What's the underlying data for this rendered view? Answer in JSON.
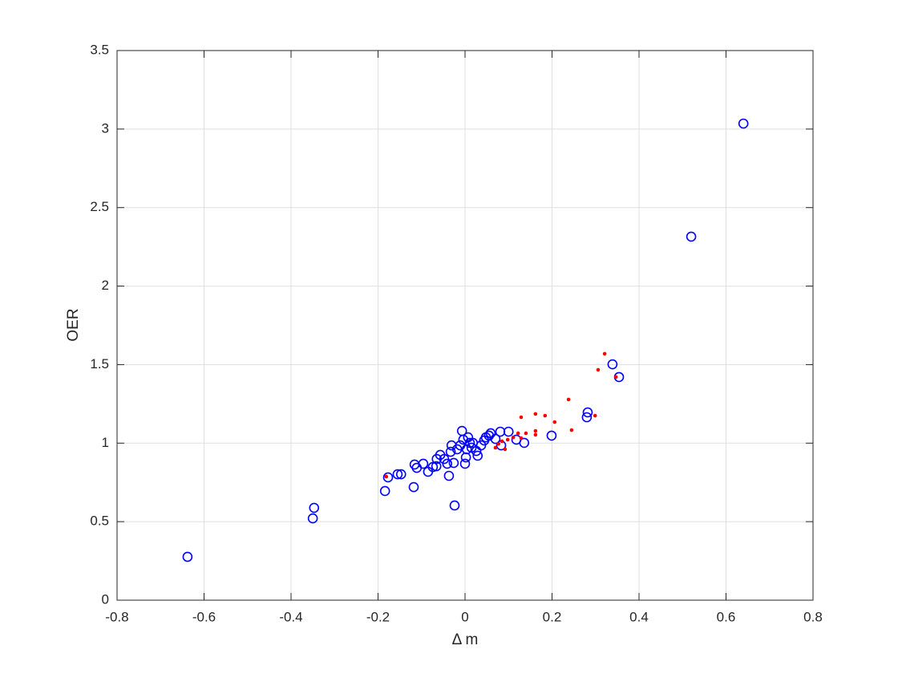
{
  "chart_data": {
    "type": "scatter",
    "xlabel": "Δ m",
    "ylabel": "OER",
    "xlim": [
      -0.8,
      0.8
    ],
    "xticks": [
      -0.8,
      -0.6,
      -0.4,
      -0.2,
      0,
      0.2,
      0.4,
      0.6,
      0.8
    ],
    "ylim": [
      0,
      3.5
    ],
    "yticks": [
      0,
      0.5,
      1,
      1.5,
      2,
      2.5,
      3,
      3.5
    ],
    "grid": true,
    "series": [
      {
        "color": "#0000ff",
        "marker": "circle",
        "x": [
          -0.638,
          -0.347,
          -0.35,
          -0.184,
          -0.177,
          -0.155,
          -0.147,
          -0.118,
          -0.116,
          -0.111,
          -0.096,
          -0.085,
          -0.074,
          -0.066,
          -0.065,
          -0.057,
          -0.048,
          -0.037,
          -0.041,
          -0.033,
          -0.026,
          -0.024,
          -0.031,
          -0.018,
          -0.007,
          -0.011,
          -0.004,
          0,
          0.002,
          0.004,
          0.007,
          0.011,
          0.015,
          0.018,
          0.026,
          0.029,
          0.037,
          0.044,
          0.048,
          0.055,
          0.059,
          0.07,
          0.081,
          0.083,
          0.1,
          0.118,
          0.136,
          0.199,
          0.282,
          0.28,
          0.339,
          0.354,
          0.52,
          0.64
        ],
        "values": [
          0.276,
          0.588,
          0.521,
          0.695,
          0.782,
          0.802,
          0.802,
          0.72,
          0.864,
          0.843,
          0.869,
          0.818,
          0.848,
          0.853,
          0.899,
          0.925,
          0.899,
          0.792,
          0.869,
          0.945,
          0.874,
          0.603,
          0.986,
          0.961,
          1.078,
          0.986,
          1.022,
          0.869,
          0.909,
          0.961,
          1.037,
          1.002,
          0.971,
          1.002,
          0.95,
          0.92,
          0.986,
          1.017,
          1.037,
          1.048,
          1.063,
          1.027,
          1.073,
          0.986,
          1.073,
          1.022,
          1.002,
          1.048,
          1.196,
          1.165,
          1.502,
          1.421,
          2.315,
          3.035
        ]
      },
      {
        "color": "#ff0000",
        "marker": "dot",
        "x": [
          -0.181,
          0.07,
          0.085,
          0.092,
          0.098,
          0.111,
          0.122,
          0.129,
          0.14,
          0.162,
          0.162,
          0.162,
          0.184,
          0.206,
          0.238,
          0.245,
          0.299,
          0.306,
          0.321,
          0.347,
          0.077,
          0.129
        ],
        "values": [
          0.787,
          0.971,
          1.012,
          0.961,
          1.022,
          1.037,
          1.063,
          1.165,
          1.063,
          1.053,
          1.078,
          1.186,
          1.175,
          1.134,
          1.278,
          1.083,
          1.175,
          1.467,
          1.569,
          1.421,
          0.996,
          1.032
        ]
      }
    ]
  }
}
